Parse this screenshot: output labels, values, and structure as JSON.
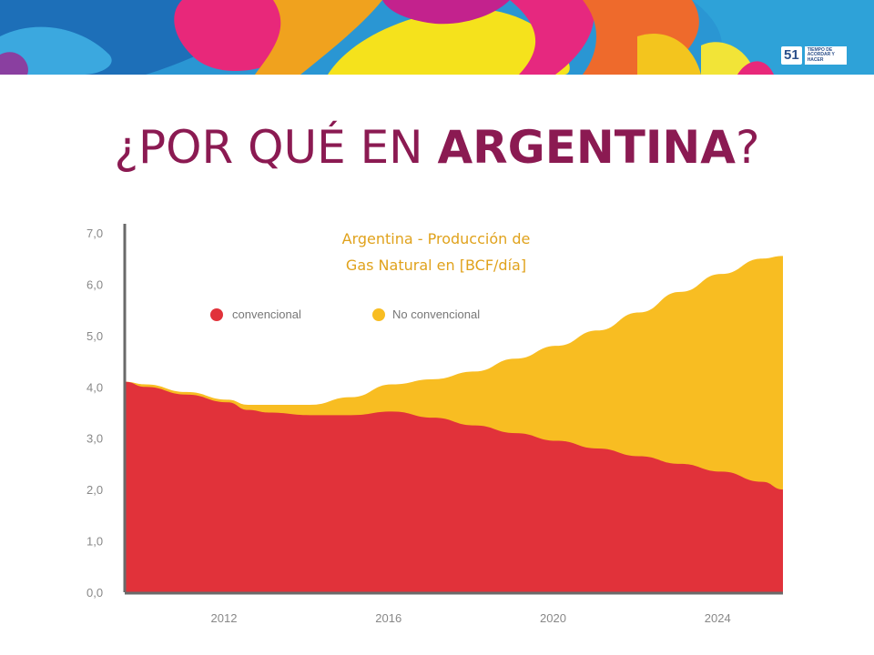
{
  "slide": {
    "title_part1": "¿POR QUÉ EN ",
    "title_bold": "ARGENTINA",
    "title_part2": "?",
    "logo_number": "51",
    "logo_text": "Tiempo de acordar y hacer"
  },
  "colors": {
    "title": "#8b1a52",
    "conventional": "#e1323a",
    "unconventional": "#f8bd22",
    "chart_title": "#e0a21c",
    "axis": "#6a6a6a"
  },
  "chart_data": {
    "type": "area",
    "title_line1": "Argentina - Producción de",
    "title_line2": "Gas Natural en [BCF/día]",
    "xlabel": "",
    "ylabel": "",
    "stacked": true,
    "xlim": [
      2009.5,
      2025.5
    ],
    "ylim": [
      0,
      7.0
    ],
    "x_ticks": [
      2012,
      2016,
      2020,
      2024
    ],
    "x_tick_labels": [
      "2012",
      "2016",
      "2020",
      "2024"
    ],
    "y_ticks": [
      0,
      1,
      2,
      3,
      4,
      5,
      6,
      7
    ],
    "y_tick_labels": [
      "0,0",
      "1,0",
      "2,0",
      "3,0",
      "4,0",
      "5,0",
      "6,0",
      "7,0"
    ],
    "legend": {
      "placement": "top-left"
    },
    "x": [
      2009.5,
      2010,
      2011,
      2012,
      2012.5,
      2013,
      2014,
      2015,
      2016,
      2017,
      2018,
      2019,
      2020,
      2021,
      2022,
      2023,
      2024,
      2025,
      2025.5
    ],
    "series": [
      {
        "name": "convencional",
        "values": [
          4.1,
          4.0,
          3.85,
          3.7,
          3.55,
          3.5,
          3.45,
          3.45,
          3.52,
          3.4,
          3.25,
          3.1,
          2.95,
          2.8,
          2.65,
          2.5,
          2.35,
          2.15,
          2.0
        ]
      },
      {
        "name": "No convencional",
        "values": [
          0.0,
          0.05,
          0.05,
          0.05,
          0.1,
          0.15,
          0.2,
          0.35,
          0.53,
          0.75,
          1.05,
          1.45,
          1.85,
          2.3,
          2.8,
          3.35,
          3.85,
          4.35,
          4.55
        ]
      }
    ]
  }
}
